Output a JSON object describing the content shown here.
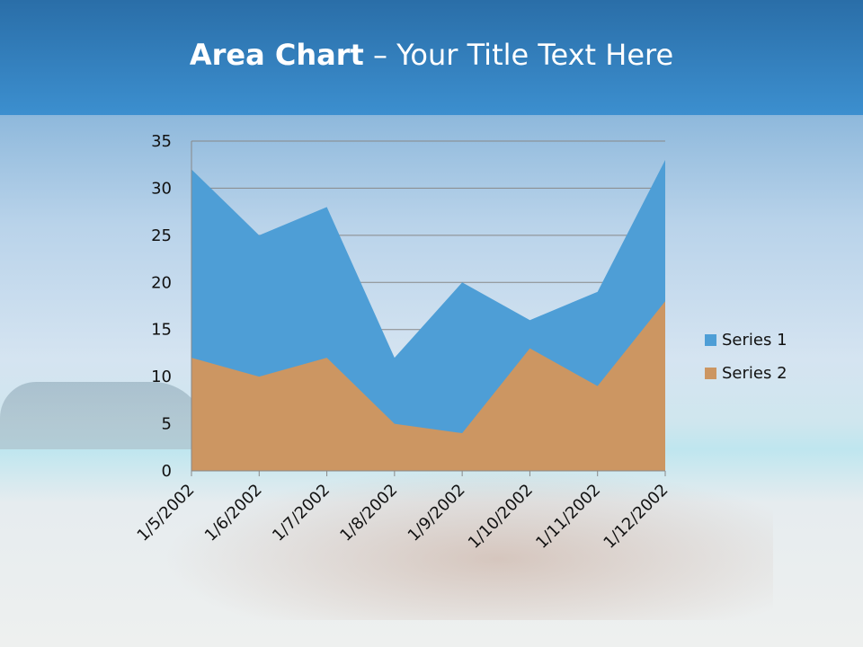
{
  "title": {
    "bold": "Area Chart",
    "rest": " – Your Title Text Here"
  },
  "chart_data": {
    "type": "area",
    "categories": [
      "1/5/2002",
      "1/6/2002",
      "1/7/2002",
      "1/8/2002",
      "1/9/2002",
      "1/10/2002",
      "1/11/2002",
      "1/12/2002"
    ],
    "series": [
      {
        "name": "Series 1",
        "values": [
          32,
          25,
          28,
          12,
          20,
          16,
          19,
          33
        ],
        "color": "#4e9ed6"
      },
      {
        "name": "Series 2",
        "values": [
          12,
          10,
          12,
          5,
          4,
          13,
          9,
          18
        ],
        "color": "#cc9662"
      }
    ],
    "ylim": [
      0,
      35
    ],
    "yticks": [
      "0",
      "5",
      "10",
      "15",
      "20",
      "25",
      "30",
      "35"
    ],
    "grid": true,
    "legend": "right"
  }
}
